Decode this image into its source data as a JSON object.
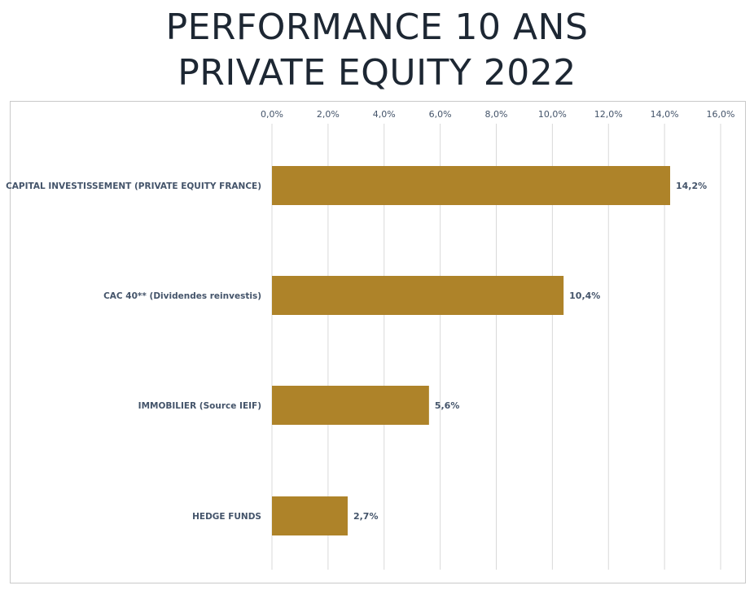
{
  "header": {
    "title_line1": "PERFORMANCE 10 ANS",
    "title_line2": "PRIVATE EQUITY  2022"
  },
  "colors": {
    "bar": "#ae8329",
    "grid": "#d9d9d9",
    "text": "#44546a",
    "title": "#1d2733"
  },
  "chart_data": {
    "type": "bar",
    "orientation": "horizontal",
    "categories": [
      "CAPITAL INVESTISSEMENT (PRIVATE EQUITY FRANCE)",
      "CAC 40** (Dividendes reinvestis)",
      "IMMOBILIER (Source IEIF)",
      "HEDGE FUNDS"
    ],
    "values": [
      14.2,
      10.4,
      5.6,
      2.7
    ],
    "value_labels": [
      "14,2%",
      "10,4%",
      "5,6%",
      "2,7%"
    ],
    "xlim": [
      0,
      16
    ],
    "ticks": [
      0,
      2,
      4,
      6,
      8,
      10,
      12,
      14,
      16
    ],
    "tick_labels": [
      "0,0%",
      "2,0%",
      "4,0%",
      "6,0%",
      "8,0%",
      "10,0%",
      "12,0%",
      "14,0%",
      "16,0%"
    ],
    "axis_position": "top",
    "grid": true,
    "legend": "none"
  }
}
